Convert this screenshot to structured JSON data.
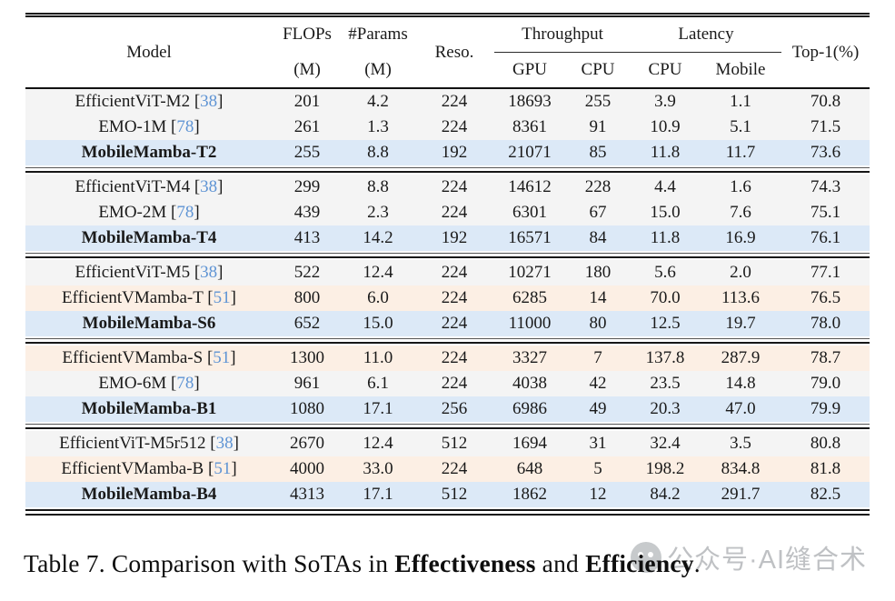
{
  "table": {
    "header": {
      "model": "Model",
      "flops_line1": "FLOPs",
      "flops_line2": "(M)",
      "params_line1": "#Params",
      "params_line2": "(M)",
      "reso": "Reso.",
      "throughput": "Throughput",
      "latency": "Latency",
      "gpu": "GPU",
      "cpu_throughput": "CPU",
      "cpu_latency": "CPU",
      "mobile": "Mobile",
      "top1": "Top-1(%)"
    },
    "colors": {
      "gray": "#f4f4f4",
      "peach": "#fcefe4",
      "blue": "#dce9f7",
      "cite": "#5f94d4",
      "rule": "#161616"
    },
    "groups": [
      {
        "rows": [
          {
            "model": "EfficientViT-M2",
            "cite": "38",
            "flops": "201",
            "params": "4.2",
            "reso": "224",
            "gpu": "18693",
            "cpu_t": "255",
            "cpu_l": "3.9",
            "mobile": "1.1",
            "top1": "70.8",
            "bg": "gray",
            "bold": false
          },
          {
            "model": "EMO-1M",
            "cite": "78",
            "flops": "261",
            "params": "1.3",
            "reso": "224",
            "gpu": "8361",
            "cpu_t": "91",
            "cpu_l": "10.9",
            "mobile": "5.1",
            "top1": "71.5",
            "bg": "gray",
            "bold": false
          },
          {
            "model": "MobileMamba-T2",
            "cite": null,
            "flops": "255",
            "params": "8.8",
            "reso": "192",
            "gpu": "21071",
            "cpu_t": "85",
            "cpu_l": "11.8",
            "mobile": "11.7",
            "top1": "73.6",
            "bg": "blue",
            "bold": true
          }
        ]
      },
      {
        "rows": [
          {
            "model": "EfficientViT-M4",
            "cite": "38",
            "flops": "299",
            "params": "8.8",
            "reso": "224",
            "gpu": "14612",
            "cpu_t": "228",
            "cpu_l": "4.4",
            "mobile": "1.6",
            "top1": "74.3",
            "bg": "gray",
            "bold": false
          },
          {
            "model": "EMO-2M",
            "cite": "78",
            "flops": "439",
            "params": "2.3",
            "reso": "224",
            "gpu": "6301",
            "cpu_t": "67",
            "cpu_l": "15.0",
            "mobile": "7.6",
            "top1": "75.1",
            "bg": "gray",
            "bold": false
          },
          {
            "model": "MobileMamba-T4",
            "cite": null,
            "flops": "413",
            "params": "14.2",
            "reso": "192",
            "gpu": "16571",
            "cpu_t": "84",
            "cpu_l": "11.8",
            "mobile": "16.9",
            "top1": "76.1",
            "bg": "blue",
            "bold": true
          }
        ]
      },
      {
        "rows": [
          {
            "model": "EfficientViT-M5",
            "cite": "38",
            "flops": "522",
            "params": "12.4",
            "reso": "224",
            "gpu": "10271",
            "cpu_t": "180",
            "cpu_l": "5.6",
            "mobile": "2.0",
            "top1": "77.1",
            "bg": "gray",
            "bold": false
          },
          {
            "model": "EfficientVMamba-T",
            "cite": "51",
            "flops": "800",
            "params": "6.0",
            "reso": "224",
            "gpu": "6285",
            "cpu_t": "14",
            "cpu_l": "70.0",
            "mobile": "113.6",
            "top1": "76.5",
            "bg": "peach",
            "bold": false
          },
          {
            "model": "MobileMamba-S6",
            "cite": null,
            "flops": "652",
            "params": "15.0",
            "reso": "224",
            "gpu": "11000",
            "cpu_t": "80",
            "cpu_l": "12.5",
            "mobile": "19.7",
            "top1": "78.0",
            "bg": "blue",
            "bold": true
          }
        ]
      },
      {
        "rows": [
          {
            "model": "EfficientVMamba-S",
            "cite": "51",
            "flops": "1300",
            "params": "11.0",
            "reso": "224",
            "gpu": "3327",
            "cpu_t": "7",
            "cpu_l": "137.8",
            "mobile": "287.9",
            "top1": "78.7",
            "bg": "peach",
            "bold": false
          },
          {
            "model": "EMO-6M",
            "cite": "78",
            "flops": "961",
            "params": "6.1",
            "reso": "224",
            "gpu": "4038",
            "cpu_t": "42",
            "cpu_l": "23.5",
            "mobile": "14.8",
            "top1": "79.0",
            "bg": "gray",
            "bold": false
          },
          {
            "model": "MobileMamba-B1",
            "cite": null,
            "flops": "1080",
            "params": "17.1",
            "reso": "256",
            "gpu": "6986",
            "cpu_t": "49",
            "cpu_l": "20.3",
            "mobile": "47.0",
            "top1": "79.9",
            "bg": "blue",
            "bold": true
          }
        ]
      },
      {
        "rows": [
          {
            "model": "EfficientViT-M5r512",
            "cite": "38",
            "flops": "2670",
            "params": "12.4",
            "reso": "512",
            "gpu": "1694",
            "cpu_t": "31",
            "cpu_l": "32.4",
            "mobile": "3.5",
            "top1": "80.8",
            "bg": "gray",
            "bold": false
          },
          {
            "model": "EfficientVMamba-B",
            "cite": "51",
            "flops": "4000",
            "params": "33.0",
            "reso": "224",
            "gpu": "648",
            "cpu_t": "5",
            "cpu_l": "198.2",
            "mobile": "834.8",
            "top1": "81.8",
            "bg": "peach",
            "bold": false
          },
          {
            "model": "MobileMamba-B4",
            "cite": null,
            "flops": "4313",
            "params": "17.1",
            "reso": "512",
            "gpu": "1862",
            "cpu_t": "12",
            "cpu_l": "84.2",
            "mobile": "291.7",
            "top1": "82.5",
            "bg": "blue",
            "bold": true
          }
        ]
      }
    ]
  },
  "caption": {
    "prefix": "Table 7. Comparison with SoTAs in ",
    "bold1": "Effectiveness",
    "middle": " and ",
    "bold2": "Efficiency",
    "suffix": "."
  },
  "watermark": {
    "icon": "wechat-logo",
    "text": "公众号·AI缝合术"
  }
}
